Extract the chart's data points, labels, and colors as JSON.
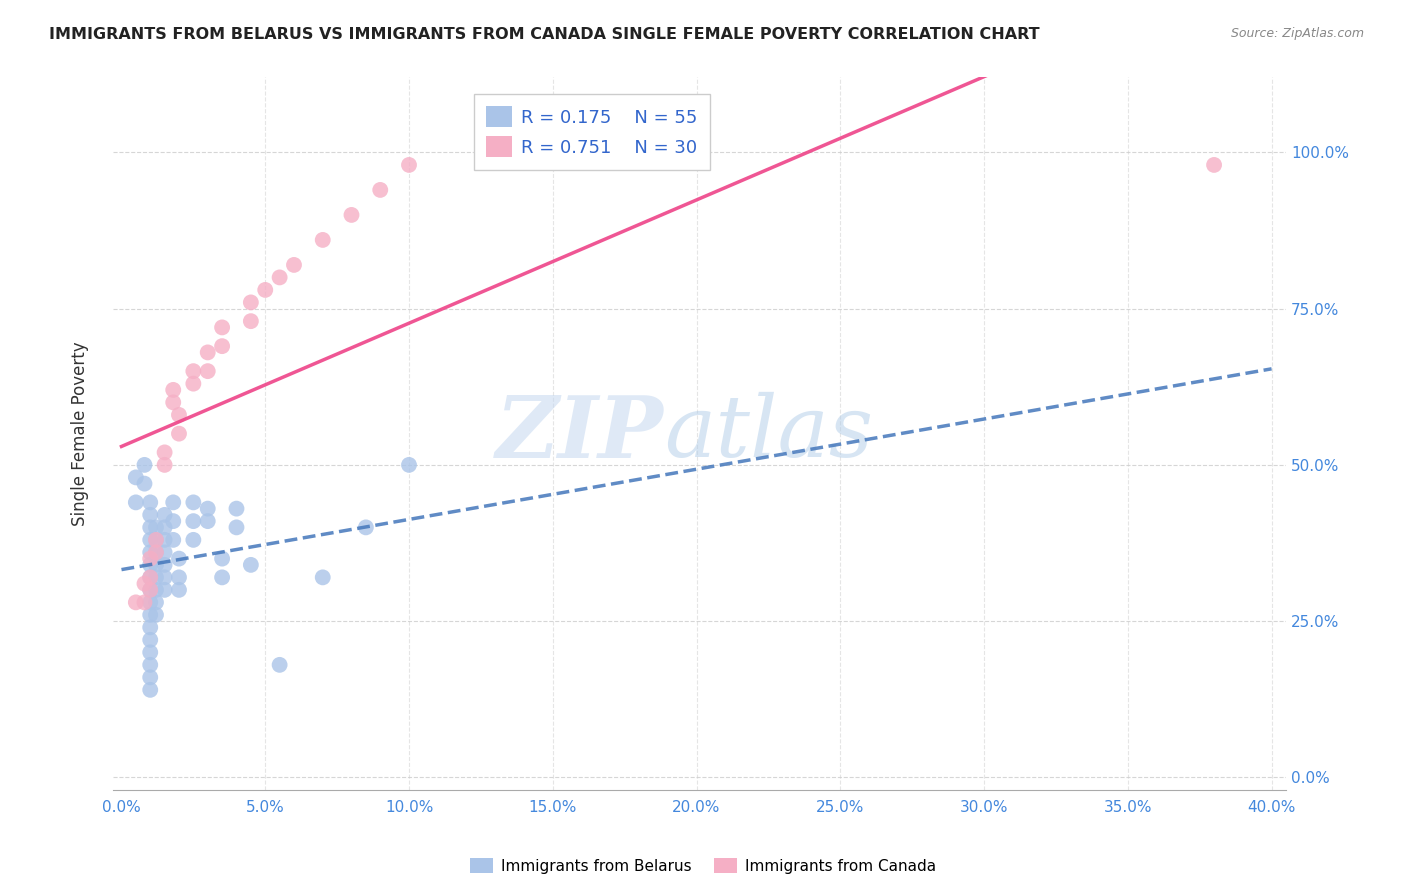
{
  "title": "IMMIGRANTS FROM BELARUS VS IMMIGRANTS FROM CANADA SINGLE FEMALE POVERTY CORRELATION CHART",
  "source": "Source: ZipAtlas.com",
  "ylabel": "Single Female Poverty",
  "legend_belarus": {
    "R": "0.175",
    "N": "55"
  },
  "legend_canada": {
    "R": "0.751",
    "N": "30"
  },
  "watermark_zip": "ZIP",
  "watermark_atlas": "atlas",
  "belarus_color": "#aac4e8",
  "canada_color": "#f5afc5",
  "trendline_belarus_color": "#4477bb",
  "trendline_canada_color": "#ee4488",
  "belarus_points": [
    [
      0.5,
      44.0
    ],
    [
      0.5,
      48.0
    ],
    [
      0.8,
      50.0
    ],
    [
      0.8,
      47.0
    ],
    [
      1.0,
      44.0
    ],
    [
      1.0,
      42.0
    ],
    [
      1.0,
      40.0
    ],
    [
      1.0,
      38.0
    ],
    [
      1.0,
      36.0
    ],
    [
      1.0,
      34.0
    ],
    [
      1.0,
      32.0
    ],
    [
      1.0,
      30.0
    ],
    [
      1.0,
      28.0
    ],
    [
      1.0,
      26.0
    ],
    [
      1.0,
      24.0
    ],
    [
      1.0,
      22.0
    ],
    [
      1.0,
      20.0
    ],
    [
      1.0,
      18.0
    ],
    [
      1.0,
      16.0
    ],
    [
      1.0,
      14.0
    ],
    [
      1.2,
      40.0
    ],
    [
      1.2,
      38.0
    ],
    [
      1.2,
      36.0
    ],
    [
      1.2,
      34.0
    ],
    [
      1.2,
      32.0
    ],
    [
      1.2,
      30.0
    ],
    [
      1.2,
      28.0
    ],
    [
      1.2,
      26.0
    ],
    [
      1.5,
      42.0
    ],
    [
      1.5,
      40.0
    ],
    [
      1.5,
      38.0
    ],
    [
      1.5,
      36.0
    ],
    [
      1.5,
      34.0
    ],
    [
      1.5,
      32.0
    ],
    [
      1.5,
      30.0
    ],
    [
      1.8,
      44.0
    ],
    [
      1.8,
      41.0
    ],
    [
      1.8,
      38.0
    ],
    [
      2.0,
      35.0
    ],
    [
      2.0,
      32.0
    ],
    [
      2.0,
      30.0
    ],
    [
      2.5,
      44.0
    ],
    [
      2.5,
      41.0
    ],
    [
      2.5,
      38.0
    ],
    [
      3.0,
      43.0
    ],
    [
      3.0,
      41.0
    ],
    [
      3.5,
      35.0
    ],
    [
      3.5,
      32.0
    ],
    [
      4.0,
      43.0
    ],
    [
      4.0,
      40.0
    ],
    [
      4.5,
      34.0
    ],
    [
      5.5,
      18.0
    ],
    [
      7.0,
      32.0
    ],
    [
      8.5,
      40.0
    ],
    [
      10.0,
      50.0
    ]
  ],
  "canada_points": [
    [
      0.5,
      28.0
    ],
    [
      0.8,
      31.0
    ],
    [
      0.8,
      28.0
    ],
    [
      1.0,
      35.0
    ],
    [
      1.0,
      32.0
    ],
    [
      1.0,
      30.0
    ],
    [
      1.2,
      38.0
    ],
    [
      1.2,
      36.0
    ],
    [
      1.5,
      52.0
    ],
    [
      1.5,
      50.0
    ],
    [
      1.8,
      62.0
    ],
    [
      1.8,
      60.0
    ],
    [
      2.0,
      58.0
    ],
    [
      2.0,
      55.0
    ],
    [
      2.5,
      65.0
    ],
    [
      2.5,
      63.0
    ],
    [
      3.0,
      68.0
    ],
    [
      3.0,
      65.0
    ],
    [
      3.5,
      72.0
    ],
    [
      3.5,
      69.0
    ],
    [
      4.5,
      76.0
    ],
    [
      4.5,
      73.0
    ],
    [
      5.0,
      78.0
    ],
    [
      5.5,
      80.0
    ],
    [
      6.0,
      82.0
    ],
    [
      7.0,
      86.0
    ],
    [
      8.0,
      90.0
    ],
    [
      9.0,
      94.0
    ],
    [
      10.0,
      98.0
    ],
    [
      38.0,
      98.0
    ]
  ],
  "xlim": [
    0.0,
    40.0
  ],
  "ylim": [
    0.0,
    110.0
  ],
  "xticks": [
    0.0,
    5.0,
    10.0,
    15.0,
    20.0,
    25.0,
    30.0,
    35.0,
    40.0
  ],
  "yticks": [
    0.0,
    25.0,
    50.0,
    75.0,
    100.0
  ],
  "background_color": "#ffffff",
  "grid_color": "#cccccc"
}
